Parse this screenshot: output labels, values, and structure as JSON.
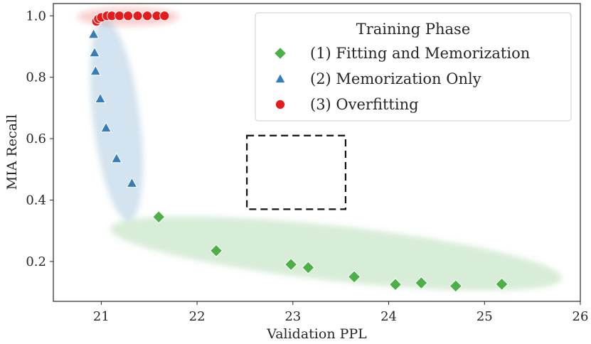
{
  "chart_data": {
    "type": "scatter",
    "title": "",
    "xlabel": "Validation PPL",
    "ylabel": "MIA Recall",
    "xlim": [
      20.5,
      26
    ],
    "ylim": [
      0.07,
      1.04
    ],
    "xticks": [
      21,
      22,
      23,
      24,
      25,
      26
    ],
    "yticks": [
      0.2,
      0.4,
      0.6,
      0.8,
      1.0
    ],
    "xtick_labels": [
      "21",
      "22",
      "23",
      "24",
      "25",
      "26"
    ],
    "ytick_labels": [
      "0.2",
      "0.4",
      "0.6",
      "0.8",
      "1.0"
    ],
    "grid": false,
    "legend": {
      "title": "Training Phase",
      "placement": "top-right"
    },
    "series": [
      {
        "name": "(1) Fitting and Memorization",
        "marker": "diamond",
        "color": "#4daf4a",
        "points": [
          {
            "x": 21.6,
            "y": 0.345
          },
          {
            "x": 22.2,
            "y": 0.235
          },
          {
            "x": 22.98,
            "y": 0.19
          },
          {
            "x": 23.16,
            "y": 0.18
          },
          {
            "x": 23.64,
            "y": 0.15
          },
          {
            "x": 24.07,
            "y": 0.125
          },
          {
            "x": 24.34,
            "y": 0.13
          },
          {
            "x": 24.7,
            "y": 0.12
          },
          {
            "x": 25.18,
            "y": 0.126
          }
        ]
      },
      {
        "name": "(2) Memorization Only",
        "marker": "triangle",
        "color": "#377eb8",
        "points": [
          {
            "x": 20.92,
            "y": 0.94
          },
          {
            "x": 20.93,
            "y": 0.88
          },
          {
            "x": 20.94,
            "y": 0.82
          },
          {
            "x": 20.99,
            "y": 0.73
          },
          {
            "x": 21.05,
            "y": 0.635
          },
          {
            "x": 21.16,
            "y": 0.535
          },
          {
            "x": 21.32,
            "y": 0.455
          }
        ]
      },
      {
        "name": "(3) Overfitting",
        "marker": "circle",
        "color": "#e41a1c",
        "points": [
          {
            "x": 20.95,
            "y": 0.982
          },
          {
            "x": 20.97,
            "y": 0.99
          },
          {
            "x": 21.0,
            "y": 0.995
          },
          {
            "x": 21.06,
            "y": 1.0
          },
          {
            "x": 21.11,
            "y": 1.0
          },
          {
            "x": 21.19,
            "y": 1.0
          },
          {
            "x": 21.28,
            "y": 1.0
          },
          {
            "x": 21.38,
            "y": 1.0
          },
          {
            "x": 21.48,
            "y": 1.0
          },
          {
            "x": 21.58,
            "y": 1.0
          },
          {
            "x": 21.66,
            "y": 1.0
          }
        ]
      }
    ],
    "regions": [
      {
        "name": "overfitting-cluster",
        "color": "#e41a1c",
        "center": {
          "x": 21.28,
          "y": 0.997
        },
        "rx_data": 0.53,
        "ry_data": 0.03,
        "angle_deg": 0
      },
      {
        "name": "memorization-cluster",
        "color": "#377eb8",
        "center": {
          "x": 21.16,
          "y": 0.66
        },
        "rx_data": 0.245,
        "ry_data": 0.33,
        "angle_deg": -7
      },
      {
        "name": "fitting-cluster",
        "color": "#4daf4a",
        "center": {
          "x": 23.45,
          "y": 0.226
        },
        "rx_data": 2.37,
        "ry_data": 0.09,
        "angle_deg": 6.3
      }
    ],
    "annotation_box": {
      "x0": 22.52,
      "x1": 23.55,
      "y0": 0.37,
      "y1": 0.61,
      "style": "dashed"
    }
  }
}
